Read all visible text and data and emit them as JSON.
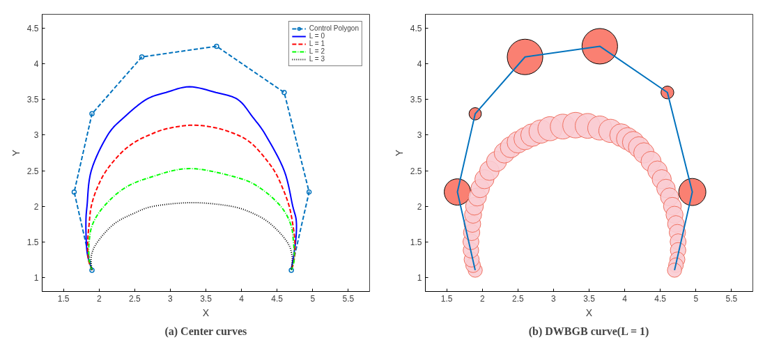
{
  "chart_data": [
    {
      "type": "line",
      "xlabel": "X",
      "ylabel": "Y",
      "xlim": [
        1.2,
        5.8
      ],
      "ylim": [
        0.8,
        4.7
      ],
      "xticks": [
        1.5,
        2,
        2.5,
        3,
        3.5,
        4,
        4.5,
        5,
        5.5
      ],
      "yticks": [
        1,
        1.5,
        2,
        2.5,
        3,
        3.5,
        4,
        4.5
      ],
      "grid": false,
      "legend": "top right",
      "annotations": [
        "(a) Center curves"
      ],
      "series": [
        {
          "name": "Control Polygon",
          "color": "#0072bd",
          "line_style": "dashed",
          "marker": "circle",
          "x": [
            1.9,
            1.65,
            1.9,
            2.6,
            3.65,
            4.6,
            4.95,
            4.7
          ],
          "values": [
            1.1,
            2.2,
            3.3,
            4.1,
            4.25,
            3.6,
            2.2,
            1.1
          ]
        },
        {
          "name": "L = 0",
          "color": "#0000ff",
          "line_style": "solid",
          "x": [
            1.9,
            1.84,
            1.82,
            1.815,
            1.83,
            1.89,
            2.12,
            2.35,
            2.66,
            2.94,
            3.27,
            3.64,
            3.95,
            4.16,
            4.34,
            4.6,
            4.72,
            4.77,
            4.76,
            4.7
          ],
          "values": [
            1.1,
            1.3,
            1.5,
            1.79,
            2.0,
            2.5,
            3.0,
            3.25,
            3.5,
            3.6,
            3.68,
            3.6,
            3.5,
            3.25,
            3.0,
            2.5,
            2.0,
            1.79,
            1.5,
            1.1
          ]
        },
        {
          "name": "L = 1",
          "color": "#ff0000",
          "line_style": "dashed",
          "x": [
            1.9,
            1.85,
            1.84,
            1.86,
            1.89,
            1.97,
            2.1,
            2.31,
            2.5,
            2.7,
            2.95,
            3.31,
            3.65,
            3.95,
            4.12,
            4.27,
            4.46,
            4.58,
            4.67,
            4.72,
            4.75,
            4.74,
            4.7
          ],
          "values": [
            1.1,
            1.25,
            1.5,
            1.75,
            2.0,
            2.25,
            2.5,
            2.75,
            2.9,
            3.0,
            3.09,
            3.14,
            3.1,
            3.0,
            2.9,
            2.75,
            2.5,
            2.25,
            2.0,
            1.75,
            1.5,
            1.25,
            1.1
          ]
        },
        {
          "name": "L = 2",
          "color": "#00ff00",
          "line_style": "dashdot",
          "x": [
            1.9,
            1.86,
            1.86,
            1.91,
            2.07,
            2.35,
            2.7,
            3.27,
            3.95,
            4.27,
            4.55,
            4.69,
            4.73,
            4.74,
            4.7
          ],
          "values": [
            1.1,
            1.25,
            1.5,
            1.75,
            2.0,
            2.25,
            2.4,
            2.53,
            2.4,
            2.25,
            2.0,
            1.75,
            1.5,
            1.25,
            1.1
          ]
        },
        {
          "name": "L = 3",
          "color": "#000000",
          "line_style": "dotted",
          "x": [
            1.9,
            1.89,
            1.98,
            2.21,
            2.49,
            2.77,
            3.31,
            3.85,
            4.16,
            4.41,
            4.64,
            4.71,
            4.7
          ],
          "values": [
            1.1,
            1.3,
            1.5,
            1.75,
            1.9,
            2.0,
            2.05,
            2.0,
            1.9,
            1.75,
            1.5,
            1.3,
            1.1
          ]
        }
      ]
    },
    {
      "type": "bubble",
      "xlabel": "X",
      "ylabel": "Y",
      "xlim": [
        1.2,
        5.8
      ],
      "ylim": [
        0.8,
        4.7
      ],
      "xticks": [
        1.5,
        2,
        2.5,
        3,
        3.5,
        4,
        4.5,
        5,
        5.5
      ],
      "yticks": [
        1,
        1.5,
        2,
        2.5,
        3,
        3.5,
        4,
        4.5
      ],
      "grid": false,
      "annotations": [
        "(b) DWBGB curve(L = 1)"
      ],
      "series": [
        {
          "type": "line",
          "color": "#0072bd",
          "x": [
            1.9,
            1.65,
            1.9,
            2.6,
            3.65,
            4.6,
            4.95,
            4.7
          ],
          "values": [
            1.1,
            2.2,
            3.3,
            4.1,
            4.25,
            3.6,
            2.2,
            1.1
          ]
        },
        {
          "type": "bubble",
          "color": "#fa8072",
          "x": [
            1.65,
            1.9,
            2.6,
            3.65,
            4.6,
            4.95
          ],
          "values": [
            2.2,
            3.3,
            4.1,
            4.25,
            3.6,
            2.2
          ],
          "sizes": [
            0.55,
            0.12,
            1,
            1,
            0.13,
            0.58
          ]
        },
        {
          "type": "bubble",
          "color": "#f9ccd3",
          "x": [
            1.9,
            1.87,
            1.85,
            1.84,
            1.84,
            1.85,
            1.86,
            1.87,
            1.89,
            1.93,
            1.97,
            2.03,
            2.1,
            2.2,
            2.31,
            2.4,
            2.5,
            2.6,
            2.7,
            2.82,
            2.95,
            3.13,
            3.31,
            3.48,
            3.65,
            3.8,
            3.95,
            4.04,
            4.12,
            4.2,
            4.27,
            4.37,
            4.46,
            4.52,
            4.58,
            4.63,
            4.67,
            4.7,
            4.72,
            4.74,
            4.75,
            4.75,
            4.74,
            4.72,
            4.7
          ],
          "values": [
            1.1,
            1.17,
            1.25,
            1.38,
            1.5,
            1.63,
            1.75,
            1.88,
            2.0,
            2.13,
            2.25,
            2.38,
            2.5,
            2.63,
            2.75,
            2.83,
            2.9,
            2.95,
            3.0,
            3.05,
            3.09,
            3.12,
            3.14,
            3.13,
            3.1,
            3.06,
            3.0,
            2.95,
            2.9,
            2.83,
            2.75,
            2.63,
            2.5,
            2.38,
            2.25,
            2.13,
            2.0,
            1.88,
            1.75,
            1.63,
            1.5,
            1.38,
            1.25,
            1.17,
            1.1
          ],
          "sizes": [
            0.16,
            0.17,
            0.18,
            0.19,
            0.2,
            0.21,
            0.22,
            0.23,
            0.25,
            0.26,
            0.27,
            0.29,
            0.3,
            0.32,
            0.33,
            0.35,
            0.37,
            0.39,
            0.41,
            0.43,
            0.46,
            0.49,
            0.52,
            0.49,
            0.46,
            0.43,
            0.41,
            0.39,
            0.37,
            0.35,
            0.33,
            0.32,
            0.3,
            0.29,
            0.27,
            0.26,
            0.25,
            0.23,
            0.22,
            0.21,
            0.2,
            0.19,
            0.18,
            0.17,
            0.16
          ]
        }
      ]
    }
  ]
}
